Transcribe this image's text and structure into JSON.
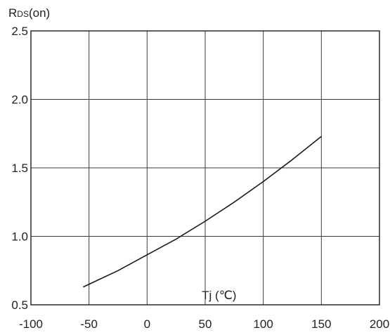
{
  "chart_data": {
    "type": "line",
    "title": "",
    "ylabel": {
      "main": "R",
      "sub": "DS",
      "suffix": "(on)"
    },
    "xlabel": "Tj (℃)",
    "xlim": [
      -100,
      200
    ],
    "ylim": [
      0.5,
      2.5
    ],
    "x_ticks": [
      -100,
      -50,
      0,
      50,
      100,
      150,
      200
    ],
    "x_tick_labels": [
      "-100",
      "-50",
      "0",
      "50",
      "100",
      "150",
      "200"
    ],
    "y_ticks": [
      0.5,
      1.0,
      1.5,
      2.0,
      2.5
    ],
    "y_tick_labels": [
      "0.5",
      "1.0",
      "1.5",
      "2.0",
      "2.5"
    ],
    "grid": true,
    "series": [
      {
        "x": [
          -55,
          -25,
          0,
          25,
          50,
          75,
          100,
          125,
          150
        ],
        "y": [
          0.63,
          0.75,
          0.865,
          0.98,
          1.11,
          1.25,
          1.4,
          1.56,
          1.73
        ]
      }
    ],
    "colors": {
      "line": "#1a1a1a",
      "grid": "#3a3a3a",
      "text": "#222222"
    }
  }
}
